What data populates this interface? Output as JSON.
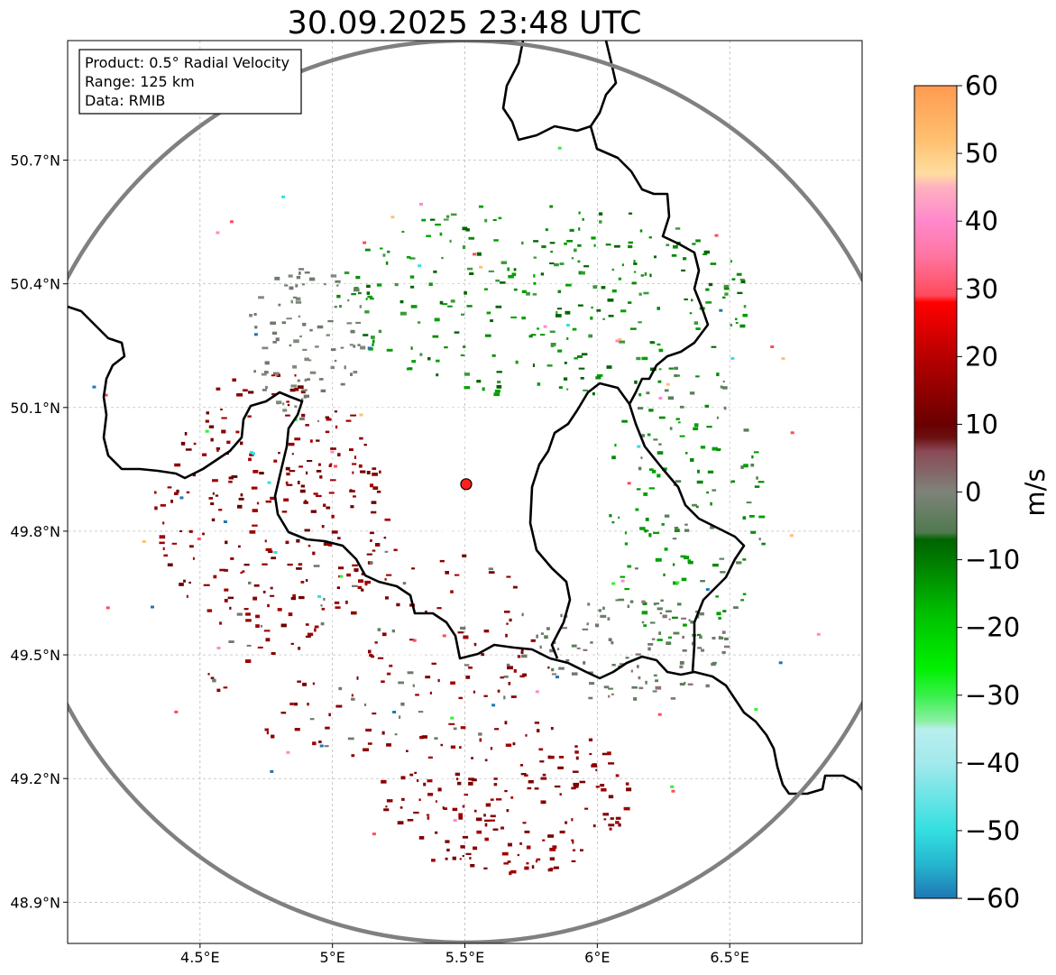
{
  "title": "30.09.2025 23:48 UTC",
  "info_box": {
    "product": "Product: 0.5° Radial Velocity",
    "range": "Range: 125 km",
    "source": "Data: RMIB"
  },
  "map": {
    "lon_range": [
      4.0,
      7.0
    ],
    "lat_range": [
      48.8,
      50.99
    ],
    "radar_site": {
      "lon": 5.505,
      "lat": 49.914
    },
    "lon_ticks": [
      {
        "value": 4.5,
        "label": "4.5°E"
      },
      {
        "value": 5.0,
        "label": "5°E"
      },
      {
        "value": 5.5,
        "label": "5.5°E"
      },
      {
        "value": 6.0,
        "label": "6°E"
      },
      {
        "value": 6.5,
        "label": "6.5°E"
      }
    ],
    "lat_ticks": [
      {
        "value": 50.7,
        "label": "50.7°N"
      },
      {
        "value": 50.4,
        "label": "50.4°N"
      },
      {
        "value": 50.1,
        "label": "50.1°N"
      },
      {
        "value": 49.8,
        "label": "49.8°N"
      },
      {
        "value": 49.5,
        "label": "49.5°N"
      },
      {
        "value": 49.2,
        "label": "49.2°N"
      },
      {
        "value": 48.9,
        "label": "48.9°N"
      }
    ]
  },
  "colorbar": {
    "label": "m/s",
    "min": -60,
    "max": 60,
    "ticks": [
      {
        "value": 60,
        "label": "60"
      },
      {
        "value": 50,
        "label": "50"
      },
      {
        "value": 40,
        "label": "40"
      },
      {
        "value": 30,
        "label": "30"
      },
      {
        "value": 20,
        "label": "20"
      },
      {
        "value": 10,
        "label": "10"
      },
      {
        "value": 0,
        "label": "0"
      },
      {
        "value": -10,
        "label": "−10"
      },
      {
        "value": -20,
        "label": "−20"
      },
      {
        "value": -30,
        "label": "−30"
      },
      {
        "value": -40,
        "label": "−40"
      },
      {
        "value": -50,
        "label": "−50"
      },
      {
        "value": -60,
        "label": "−60"
      }
    ],
    "color_stops": [
      {
        "value": -60,
        "color": "#1f77b4"
      },
      {
        "value": -55,
        "color": "#26b5cf"
      },
      {
        "value": -50,
        "color": "#33dfe0"
      },
      {
        "value": -40,
        "color": "#a3e9ec"
      },
      {
        "value": -35,
        "color": "#b9eeee"
      },
      {
        "value": -34,
        "color": "#8ff0a8"
      },
      {
        "value": -30,
        "color": "#37f04a"
      },
      {
        "value": -26,
        "color": "#00f000"
      },
      {
        "value": -18,
        "color": "#00c000"
      },
      {
        "value": -10,
        "color": "#007a00"
      },
      {
        "value": -7,
        "color": "#006400"
      },
      {
        "value": -6,
        "color": "#4f7a4f"
      },
      {
        "value": 0,
        "color": "#7e837a"
      },
      {
        "value": 6,
        "color": "#8a4a57"
      },
      {
        "value": 8,
        "color": "#6b1010"
      },
      {
        "value": 10,
        "color": "#6a0000"
      },
      {
        "value": 20,
        "color": "#b80000"
      },
      {
        "value": 28,
        "color": "#ff0000"
      },
      {
        "value": 29,
        "color": "#ff4a5c"
      },
      {
        "value": 35,
        "color": "#ff76a2"
      },
      {
        "value": 40,
        "color": "#ff88cc"
      },
      {
        "value": 45,
        "color": "#ffb0c0"
      },
      {
        "value": 47,
        "color": "#ffdda0"
      },
      {
        "value": 52,
        "color": "#ffc070"
      },
      {
        "value": 60,
        "color": "#ff9a50"
      }
    ]
  },
  "range_ring_color": "#808080",
  "border_color": "#000000",
  "radar_marker_color": "#ff2020"
}
